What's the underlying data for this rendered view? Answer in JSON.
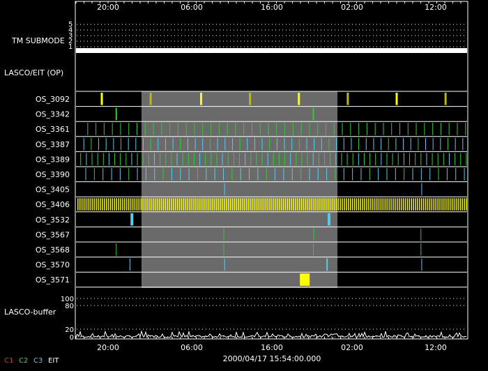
{
  "time_axis": {
    "top_ticks": [
      "20:00",
      "06:00",
      "16:00",
      "02:00",
      "12:00"
    ],
    "bottom_ticks": [
      "20:00",
      "06:00",
      "16:00",
      "02:00",
      "12:00"
    ],
    "center_timestamp": "2000/04/17 15:54:00.000"
  },
  "tm_submode": {
    "label": "TM SUBMODE",
    "scale": [
      "5",
      "4",
      "3",
      "2",
      "1"
    ]
  },
  "lasco_eit_label": "LASCO/EIT (OP)",
  "buffer": {
    "label": "LASCO-buffer",
    "scale": [
      "100",
      "80",
      "20",
      "0"
    ]
  },
  "legend": [
    {
      "label": "C1",
      "color": "#ff2a2a"
    },
    {
      "label": "C2",
      "color": "#33dd33"
    },
    {
      "label": "C3",
      "color": "#55ccff"
    },
    {
      "label": "EIT",
      "color": "#ffffff"
    }
  ],
  "colors": {
    "background": "#000000",
    "shade": "#6a6a6a",
    "c2": "#33cc33",
    "c3": "#55ccee",
    "eit": "#ffff00",
    "eit_dim": "#bbbb00"
  },
  "programs": [
    {
      "label": "OS_3092",
      "events": [
        {
          "t": 0.066,
          "c": "eit",
          "w": 3
        },
        {
          "t": 0.191,
          "c": "eit_dim",
          "w": 3
        },
        {
          "t": 0.32,
          "c": "eit",
          "w": 3
        },
        {
          "t": 0.445,
          "c": "eit_dim",
          "w": 3
        },
        {
          "t": 0.57,
          "c": "eit",
          "w": 3
        },
        {
          "t": 0.695,
          "c": "eit_dim",
          "w": 3
        },
        {
          "t": 0.82,
          "c": "eit",
          "w": 3
        },
        {
          "t": 0.945,
          "c": "eit_dim",
          "w": 3
        }
      ]
    },
    {
      "label": "OS_3342",
      "events": [
        {
          "t": 0.103,
          "c": "c2",
          "w": 2
        },
        {
          "t": 0.607,
          "c": "c2",
          "w": 2
        }
      ]
    },
    {
      "label": "OS_3361",
      "events": [],
      "pattern": {
        "start": 0.03,
        "step": 0.021,
        "end": 1.0,
        "c": "c2"
      }
    },
    {
      "label": "OS_3387",
      "events": [],
      "pattern": {
        "start": 0.02,
        "step": 0.019,
        "end": 1.0,
        "c": "c3",
        "alt": "c2"
      }
    },
    {
      "label": "OS_3389",
      "events": [],
      "pattern": {
        "start": 0.012,
        "step": 0.0145,
        "end": 1.0,
        "c": "c2",
        "alt": "c3"
      }
    },
    {
      "label": "OS_3390",
      "events": [],
      "pattern": {
        "start": 0.025,
        "step": 0.022,
        "end": 1.0,
        "c": "c3",
        "alt": "c2"
      }
    },
    {
      "label": "OS_3405",
      "events": [
        {
          "t": 0.38,
          "c": "c3",
          "w": 1
        },
        {
          "t": 0.884,
          "c": "c3",
          "w": 1
        }
      ]
    },
    {
      "label": "OS_3406",
      "events": [],
      "pattern": {
        "start": 0.005,
        "step": 0.0052,
        "end": 1.0,
        "c": "eit"
      }
    },
    {
      "label": "OS_3532",
      "events": [
        {
          "t": 0.143,
          "c": "c3",
          "w": 4
        },
        {
          "t": 0.647,
          "c": "c3",
          "w": 4
        }
      ]
    },
    {
      "label": "OS_3567",
      "events": [
        {
          "t": 0.378,
          "c": "c2",
          "w": 1
        },
        {
          "t": 0.608,
          "c": "c2",
          "w": 1
        },
        {
          "t": 0.882,
          "c": "c2",
          "w": 1
        }
      ]
    },
    {
      "label": "OS_3568",
      "events": [
        {
          "t": 0.103,
          "c": "c2",
          "w": 1
        },
        {
          "t": 0.378,
          "c": "c2",
          "w": 1
        },
        {
          "t": 0.607,
          "c": "c2",
          "w": 1
        },
        {
          "t": 0.882,
          "c": "c2",
          "w": 1
        }
      ]
    },
    {
      "label": "OS_3570",
      "events": [
        {
          "t": 0.138,
          "c": "c3",
          "w": 1
        },
        {
          "t": 0.38,
          "c": "c3",
          "w": 1
        },
        {
          "t": 0.642,
          "c": "c3",
          "w": 2
        },
        {
          "t": 0.884,
          "c": "c3",
          "w": 1
        }
      ]
    },
    {
      "label": "OS_3571",
      "events": [
        {
          "t": 0.585,
          "c": "eit",
          "w": 14
        }
      ]
    }
  ]
}
